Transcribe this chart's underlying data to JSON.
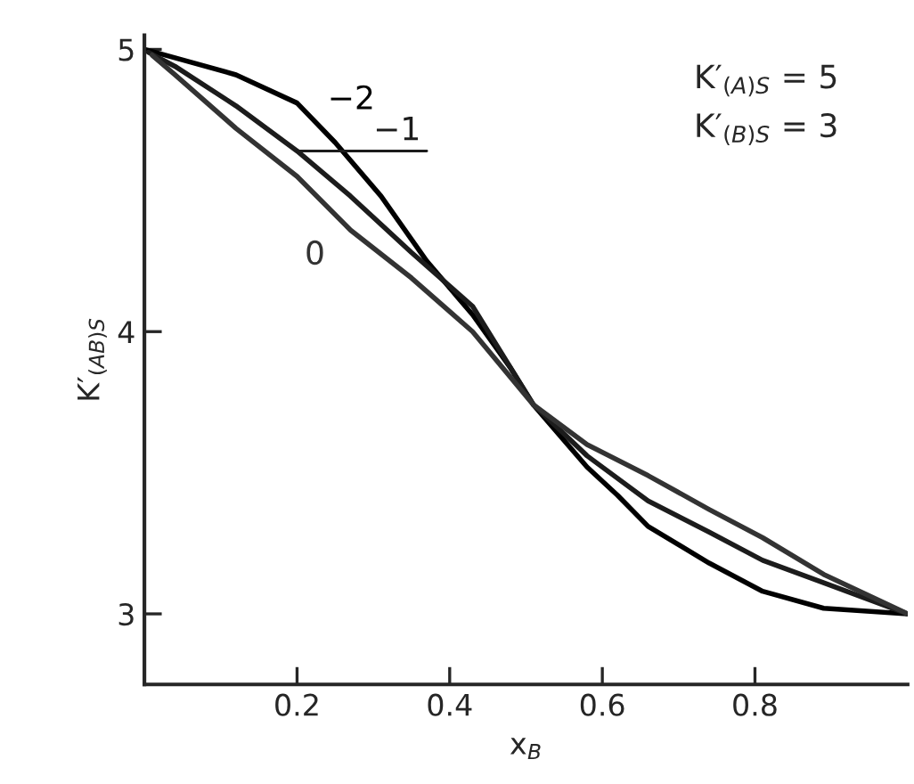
{
  "chart_data": {
    "type": "line",
    "xlabel": "x$_{B}$",
    "ylabel": "K′$_{(AB)S}$",
    "xlim": [
      0,
      1
    ],
    "ylim": [
      2.75,
      5.05
    ],
    "xticks": [
      0.2,
      0.4,
      0.6,
      0.8
    ],
    "yticks": [
      3,
      4,
      5
    ],
    "grid": false,
    "legend": false,
    "marker": "none",
    "line_style": "solid",
    "annotations": [
      "K′$_{(A)S}$ = 5",
      "K′$_{(B)S}$ = 3"
    ],
    "series": [
      {
        "name": "−2",
        "color": "#000000",
        "x": [
          0,
          0.04,
          0.12,
          0.2,
          0.25,
          0.31,
          0.37,
          0.43,
          0.48,
          0.51,
          0.58,
          0.62,
          0.66,
          0.74,
          0.81,
          0.89,
          1.0
        ],
        "values": [
          5,
          4.97,
          4.91,
          4.81,
          4.67,
          4.48,
          4.25,
          4.06,
          3.87,
          3.74,
          3.52,
          3.42,
          3.31,
          3.18,
          3.08,
          3.02,
          3.0
        ]
      },
      {
        "name": "−1",
        "color": "#1c1c1c",
        "x": [
          0.005,
          0.04,
          0.12,
          0.2,
          0.27,
          0.35,
          0.43,
          0.51,
          0.58,
          0.66,
          0.74,
          0.81,
          0.89,
          1.0
        ],
        "values": [
          4.99,
          4.94,
          4.8,
          4.64,
          4.48,
          4.28,
          4.09,
          3.74,
          3.56,
          3.4,
          3.29,
          3.19,
          3.11,
          3.0
        ]
      },
      {
        "name": "0",
        "color": "#333333",
        "x": [
          0.01,
          0.04,
          0.12,
          0.2,
          0.27,
          0.35,
          0.43,
          0.51,
          0.58,
          0.66,
          0.74,
          0.81,
          0.89,
          1.0
        ],
        "values": [
          4.98,
          4.91,
          4.72,
          4.55,
          4.36,
          4.19,
          4.0,
          3.74,
          3.6,
          3.49,
          3.37,
          3.27,
          3.14,
          3.0
        ]
      }
    ]
  }
}
